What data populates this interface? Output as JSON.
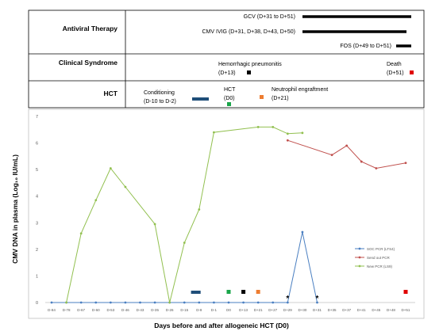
{
  "timeline": {
    "rows": [
      {
        "label": "Antiviral Therapy"
      },
      {
        "label": "Clinical Syndrome"
      },
      {
        "label": "HCT"
      }
    ],
    "antiviral": [
      {
        "text": "GCV (D+31 to D+51)",
        "start": "D+31",
        "end": "D+51"
      },
      {
        "text": "CMV IVIG (D+31, D+38, D+43, D+50)",
        "start": "D+31",
        "end": "D+50"
      },
      {
        "text": "FOS (D+49 to D+51)",
        "start": "D+49",
        "end": "D+51"
      }
    ],
    "syndrome": [
      {
        "line1": "Hemorrhagic pneumonitis",
        "line2": "(D+13)",
        "color": "#000000"
      },
      {
        "line1": "Death",
        "line2": "(D+51)",
        "color": "#e00000"
      }
    ],
    "hct": [
      {
        "line1": "Conditioning",
        "line2": "(D-10 to D-2)",
        "color": "#1f4e79"
      },
      {
        "line1": "HCT",
        "line2": "(D0)",
        "color": "#1aa64a"
      },
      {
        "line1": "Neutrophil engraftment",
        "line2": "(D+21)",
        "color": "#ed7d31"
      }
    ]
  },
  "chart_data": {
    "type": "line",
    "ylabel": "CMV DNA in plasma (Log₁₀ IU/mL)",
    "xlabel": "Days before and after allogeneic HCT (D0)",
    "ylim": [
      0,
      7
    ],
    "yticks": [
      "0",
      "1",
      "2",
      "3",
      "4",
      "5",
      "6",
      "7"
    ],
    "categories": [
      "D-84",
      "D-78",
      "D-67",
      "D-60",
      "D-53",
      "D-46",
      "D-43",
      "D-35",
      "D-26",
      "D-15",
      "D-8",
      "D-1",
      "D0",
      "D+13",
      "D+21",
      "D+27",
      "D+29",
      "D+30",
      "D+31",
      "D+35",
      "D+37",
      "D+41",
      "D+45",
      "D+48",
      "D+51"
    ],
    "series": [
      {
        "name": "SOC PCR (LTS4)",
        "color": "#4a7fc1",
        "values": [
          0,
          0,
          0,
          0,
          0,
          0,
          0,
          0,
          0,
          0,
          0,
          0,
          0,
          0,
          0,
          0,
          0,
          2.65,
          0,
          null,
          null,
          null,
          null,
          null,
          null
        ]
      },
      {
        "name": "Send out PCR",
        "color": "#c0504d",
        "values": [
          null,
          null,
          null,
          null,
          null,
          null,
          null,
          null,
          null,
          null,
          null,
          null,
          null,
          null,
          null,
          null,
          6.1,
          null,
          null,
          5.55,
          5.9,
          5.3,
          5.05,
          null,
          5.25
        ]
      },
      {
        "name": "New PCR (LS9)",
        "color": "#92c050",
        "values": [
          null,
          0,
          2.6,
          3.85,
          5.05,
          4.35,
          null,
          2.95,
          0,
          2.25,
          3.5,
          6.4,
          null,
          null,
          6.6,
          6.6,
          6.35,
          6.38,
          null,
          null,
          null,
          null,
          null,
          null,
          null
        ]
      }
    ],
    "asterisks": [
      {
        "x": "D+29",
        "text": "*"
      },
      {
        "x": "D+31",
        "text": "*"
      }
    ],
    "events": [
      {
        "type": "bar",
        "from": "D-15",
        "to": "D-8",
        "color": "#1f4e79"
      },
      {
        "type": "square",
        "x": "D0",
        "color": "#1aa64a"
      },
      {
        "type": "square",
        "x": "D+13",
        "color": "#000000"
      },
      {
        "type": "square",
        "x": "D+21",
        "color": "#ed7d31"
      },
      {
        "type": "square",
        "x": "D+51",
        "color": "#e00000"
      }
    ],
    "legend_position": "right",
    "grid": false
  }
}
